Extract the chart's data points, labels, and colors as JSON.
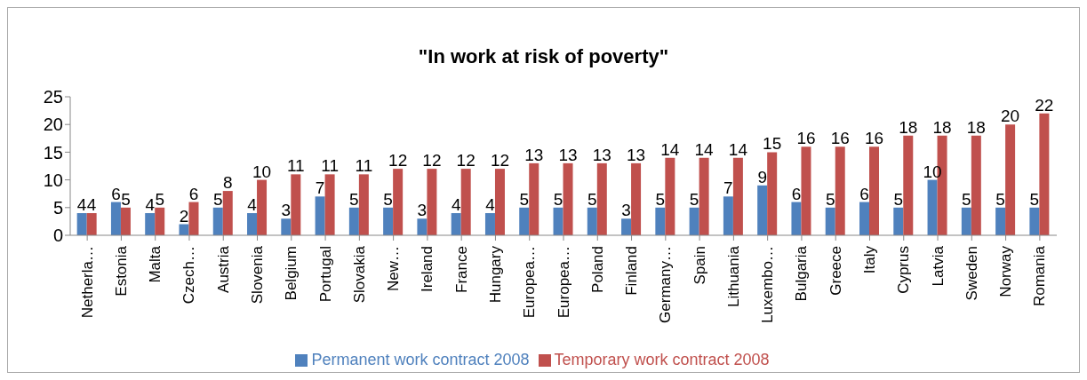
{
  "chart_data": {
    "type": "bar",
    "title": "\"In work at risk of poverty\"",
    "categories": [
      "Netherla…",
      "Estonia",
      "Malta",
      "Czech…",
      "Austria",
      "Slovenia",
      "Belgium",
      "Portugal",
      "Slovakia",
      "New…",
      "Ireland",
      "France",
      "Hungary",
      "Europea…",
      "Europea…",
      "Poland",
      "Finland",
      "Germany…",
      "Spain",
      "Lithuania",
      "Luxembo…",
      "Bulgaria",
      "Greece",
      "Italy",
      "Cyprus",
      "Latvia",
      "Sweden",
      "Norway",
      "Romania"
    ],
    "series": [
      {
        "name": "Permanent work contract 2008",
        "color": "#4f81bd",
        "values": [
          4,
          6,
          4,
          2,
          5,
          4,
          3,
          7,
          5,
          5,
          3,
          4,
          4,
          5,
          5,
          5,
          3,
          5,
          5,
          7,
          9,
          6,
          5,
          6,
          5,
          10,
          5,
          5,
          5
        ]
      },
      {
        "name": "Temporary work contract 2008",
        "color": "#c0504d",
        "values": [
          4,
          5,
          5,
          6,
          8,
          10,
          11,
          11,
          11,
          12,
          12,
          12,
          12,
          13,
          13,
          13,
          13,
          14,
          14,
          14,
          15,
          16,
          16,
          16,
          18,
          18,
          18,
          20,
          22
        ]
      }
    ],
    "ylim": [
      0,
      25
    ],
    "yticks": [
      0,
      5,
      10,
      15,
      20,
      25
    ],
    "grid": false,
    "legend": "bottom",
    "data_labels": true
  }
}
